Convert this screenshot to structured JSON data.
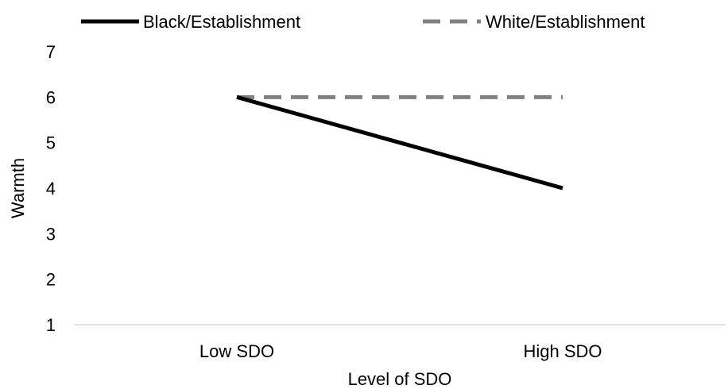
{
  "chart_data": {
    "type": "line",
    "title": "",
    "xlabel": "Level of SDO",
    "ylabel": "Warmth",
    "categories": [
      "Low SDO",
      "High SDO"
    ],
    "ylim": [
      1,
      7
    ],
    "yticks": [
      "1",
      "2",
      "3",
      "4",
      "5",
      "6",
      "7"
    ],
    "grid": false,
    "legend_position": "top",
    "series": [
      {
        "name": "Black/Establishment",
        "values": [
          6,
          4
        ],
        "color": "#000000",
        "style": "solid"
      },
      {
        "name": "White/Establishment",
        "values": [
          6,
          6
        ],
        "color": "#808080",
        "style": "dashed"
      }
    ]
  }
}
